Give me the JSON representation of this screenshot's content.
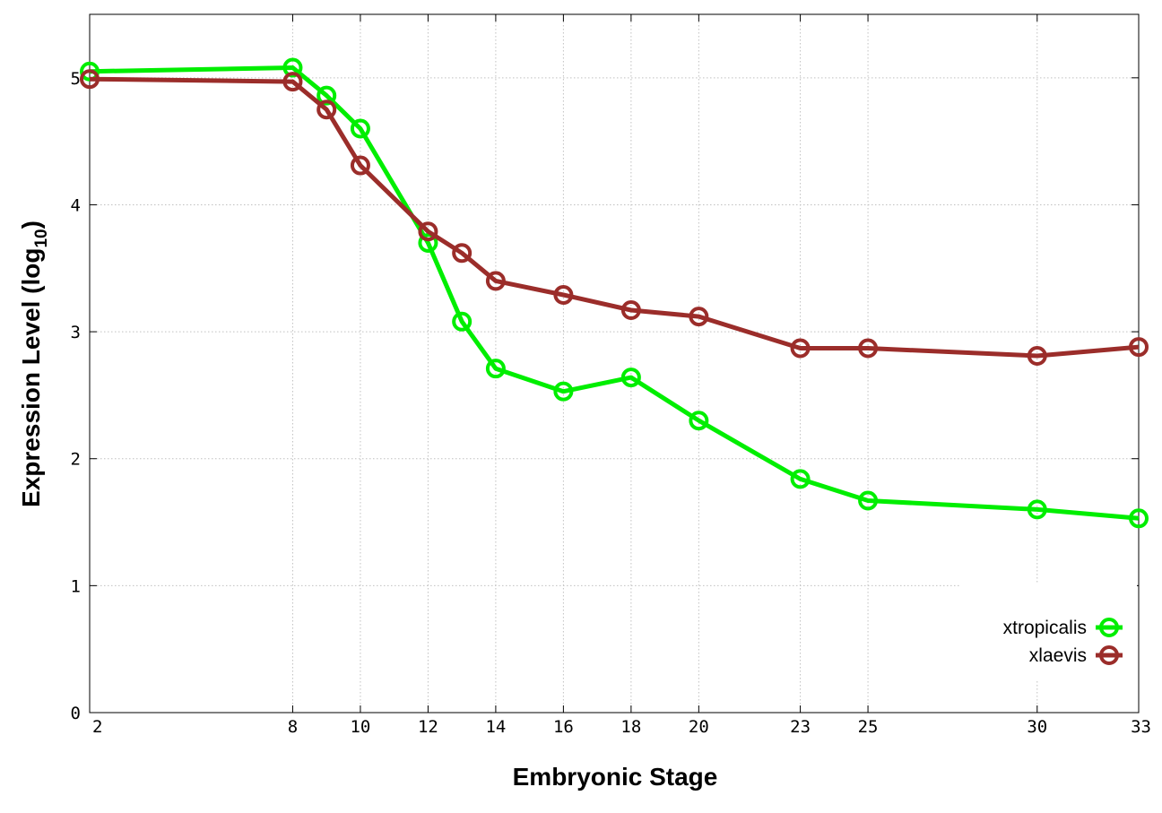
{
  "chart_data": {
    "type": "line",
    "xlabel": "Embryonic Stage",
    "ylabel": "Expression Level (log",
    "ylabel_subscript": "10",
    "ylabel_close": ")",
    "x_ticks": [
      2,
      8,
      10,
      12,
      14,
      16,
      18,
      20,
      23,
      25,
      30,
      33
    ],
    "x_tick_labels": [
      "2",
      "8",
      "10",
      "12",
      "14",
      "16",
      "18",
      "20",
      "23",
      "25",
      "30",
      "33"
    ],
    "y_ticks": [
      0,
      1,
      2,
      3,
      4,
      5
    ],
    "y_tick_labels": [
      "0",
      "1",
      "2",
      "3",
      "4",
      "5"
    ],
    "xlim": [
      2,
      33
    ],
    "ylim": [
      0,
      5.5
    ],
    "grid": true,
    "legend_position": "bottom-right",
    "series": [
      {
        "name": "xtropicalis",
        "color": "#00ee00",
        "marker": "open-circle",
        "x": [
          2,
          8,
          9,
          10,
          12,
          13,
          14,
          16,
          18,
          20,
          23,
          25,
          30,
          33
        ],
        "y": [
          5.05,
          5.08,
          4.86,
          4.6,
          3.7,
          3.08,
          2.71,
          2.53,
          2.64,
          2.3,
          1.84,
          1.67,
          1.6,
          1.53
        ]
      },
      {
        "name": "xlaevis",
        "color": "#9b2d2a",
        "marker": "open-circle",
        "x": [
          2,
          8,
          9,
          10,
          12,
          13,
          14,
          16,
          18,
          20,
          23,
          25,
          30,
          33
        ],
        "y": [
          4.99,
          4.97,
          4.75,
          4.31,
          3.79,
          3.62,
          3.4,
          3.29,
          3.17,
          3.12,
          2.87,
          2.87,
          2.81,
          2.88
        ]
      }
    ]
  }
}
